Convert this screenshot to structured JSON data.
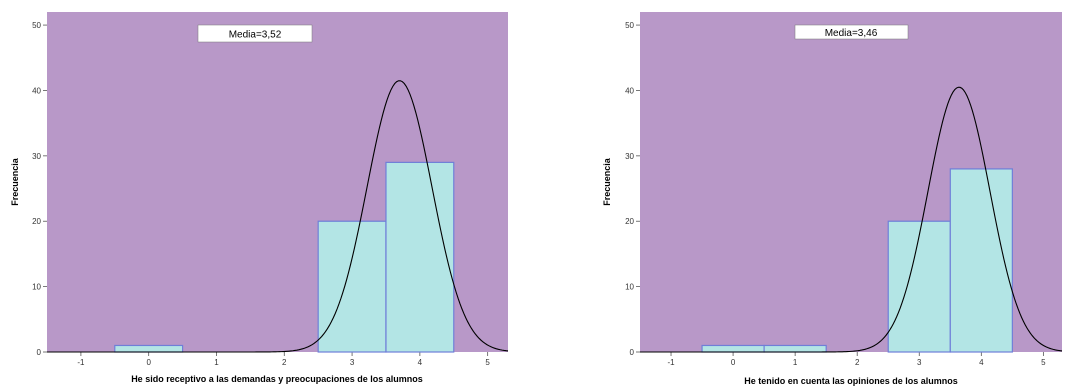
{
  "chart_data": [
    {
      "type": "bar",
      "subtype": "histogram-with-normal-curve",
      "annotation": "Media=3,52",
      "xlabel": "He sido receptivo a las demandas y preocupaciones de los alumnos",
      "ylabel": "Frecuencia",
      "xlim": [
        -1.5,
        5.3
      ],
      "ylim": [
        0,
        52
      ],
      "xticks": [
        -1,
        0,
        1,
        2,
        3,
        4,
        5
      ],
      "yticks": [
        0,
        10,
        20,
        30,
        40,
        50
      ],
      "bins": [
        {
          "x0": -0.5,
          "x1": 0.5,
          "value": 1
        },
        {
          "x0": 2.5,
          "x1": 3.5,
          "value": 20
        },
        {
          "x0": 3.5,
          "x1": 4.5,
          "value": 29
        }
      ],
      "curve": {
        "mean": 3.7,
        "sd": 0.48,
        "peak": 41.5
      },
      "colors": {
        "plot_bg": "#b898c8",
        "bar_fill": "#b3e5e5",
        "bar_stroke": "#6f7fd8",
        "curve": "#000000"
      }
    },
    {
      "type": "bar",
      "subtype": "histogram-with-normal-curve",
      "annotation": "Media=3,46",
      "xlabel": "He tenido en cuenta las opiniones de los alumnos",
      "ylabel": "Frecuencia",
      "xlim": [
        -1.5,
        5.3
      ],
      "ylim": [
        0,
        52
      ],
      "xticks": [
        -1,
        0,
        1,
        2,
        3,
        4,
        5
      ],
      "yticks": [
        0,
        10,
        20,
        30,
        40,
        50
      ],
      "bins": [
        {
          "x0": -0.5,
          "x1": 0.5,
          "value": 1
        },
        {
          "x0": 0.5,
          "x1": 1.5,
          "value": 1
        },
        {
          "x0": 2.5,
          "x1": 3.5,
          "value": 20
        },
        {
          "x0": 3.5,
          "x1": 4.5,
          "value": 28
        }
      ],
      "curve": {
        "mean": 3.64,
        "sd": 0.5,
        "peak": 40.5
      },
      "colors": {
        "plot_bg": "#b898c8",
        "bar_fill": "#b3e5e5",
        "bar_stroke": "#6f7fd8",
        "curve": "#000000"
      }
    }
  ]
}
